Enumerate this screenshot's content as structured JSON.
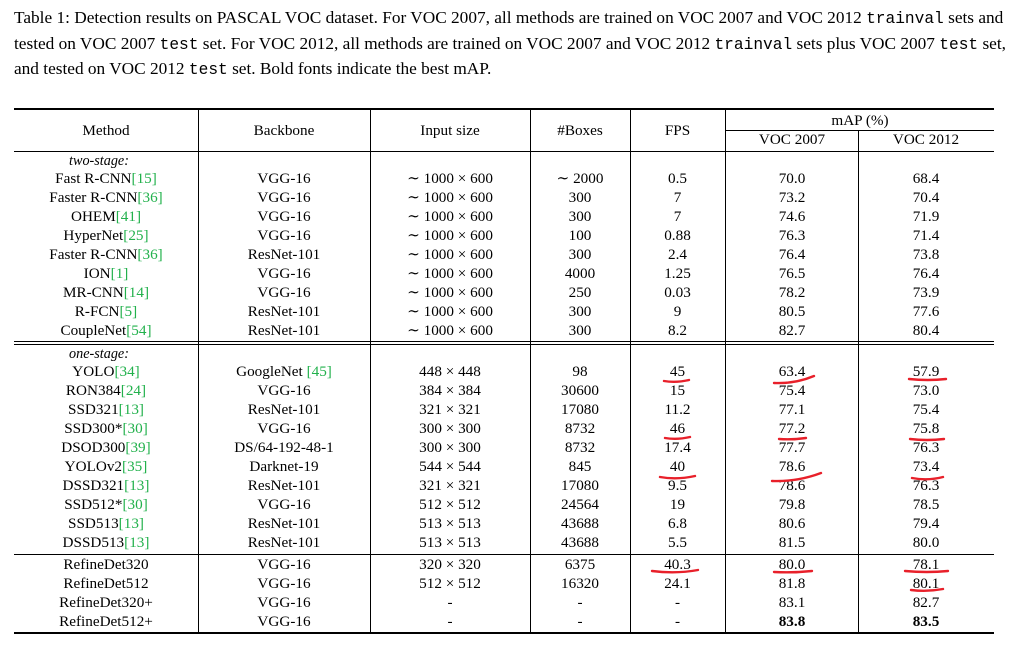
{
  "caption": {
    "parts": [
      {
        "text": "Table 1: Detection results on PASCAL VOC dataset. For VOC 2007, all methods are trained on VOC 2007 and VOC 2012 ",
        "mono": false
      },
      {
        "text": "trainval",
        "mono": true
      },
      {
        "text": " sets and tested on VOC 2007 ",
        "mono": false
      },
      {
        "text": "test",
        "mono": true
      },
      {
        "text": " set. For VOC 2012, all methods are trained on VOC 2007 and VOC 2012 ",
        "mono": false
      },
      {
        "text": "trainval",
        "mono": true
      },
      {
        "text": " sets plus VOC 2007 ",
        "mono": false
      },
      {
        "text": "test",
        "mono": true
      },
      {
        "text": " set, and tested on VOC 2012 ",
        "mono": false
      },
      {
        "text": "test",
        "mono": true
      },
      {
        "text": " set. Bold fonts indicate the best mAP.",
        "mono": false
      }
    ]
  },
  "header": {
    "method": "Method",
    "backbone": "Backbone",
    "input_size": "Input size",
    "boxes": "#Boxes",
    "fps": "FPS",
    "map": "mAP (%)",
    "voc2007": "VOC 2007",
    "voc2012": "VOC 2012"
  },
  "groups": [
    {
      "label": "two-stage:",
      "rows": [
        {
          "method": "Fast R-CNN",
          "ref": "[15]",
          "backbone": "VGG-16",
          "input": "∼ 1000 × 600",
          "boxes": "∼ 2000",
          "fps": "0.5",
          "voc2007": "70.0",
          "voc2012": "68.4"
        },
        {
          "method": "Faster R-CNN",
          "ref": "[36]",
          "backbone": "VGG-16",
          "input": "∼ 1000 × 600",
          "boxes": "300",
          "fps": "7",
          "voc2007": "73.2",
          "voc2012": "70.4"
        },
        {
          "method": "OHEM",
          "ref": "[41]",
          "backbone": "VGG-16",
          "input": "∼ 1000 × 600",
          "boxes": "300",
          "fps": "7",
          "voc2007": "74.6",
          "voc2012": "71.9"
        },
        {
          "method": "HyperNet",
          "ref": "[25]",
          "backbone": "VGG-16",
          "input": "∼ 1000 × 600",
          "boxes": "100",
          "fps": "0.88",
          "voc2007": "76.3",
          "voc2012": "71.4"
        },
        {
          "method": "Faster R-CNN",
          "ref": "[36]",
          "backbone": "ResNet-101",
          "input": "∼ 1000 × 600",
          "boxes": "300",
          "fps": "2.4",
          "voc2007": "76.4",
          "voc2012": "73.8"
        },
        {
          "method": "ION",
          "ref": "[1]",
          "backbone": "VGG-16",
          "input": "∼ 1000 × 600",
          "boxes": "4000",
          "fps": "1.25",
          "voc2007": "76.5",
          "voc2012": "76.4"
        },
        {
          "method": "MR-CNN",
          "ref": "[14]",
          "backbone": "VGG-16",
          "input": "∼ 1000 × 600",
          "boxes": "250",
          "fps": "0.03",
          "voc2007": "78.2",
          "voc2012": "73.9"
        },
        {
          "method": "R-FCN",
          "ref": "[5]",
          "backbone": "ResNet-101",
          "input": "∼ 1000 × 600",
          "boxes": "300",
          "fps": "9",
          "voc2007": "80.5",
          "voc2012": "77.6"
        },
        {
          "method": "CoupleNet",
          "ref": "[54]",
          "backbone": "ResNet-101",
          "input": "∼ 1000 × 600",
          "boxes": "300",
          "fps": "8.2",
          "voc2007": "82.7",
          "voc2012": "80.4"
        }
      ]
    },
    {
      "label": "one-stage:",
      "rows": [
        {
          "method": "YOLO",
          "ref": "[34]",
          "backbone": "GoogleNet [45]",
          "input": "448 × 448",
          "boxes": "98",
          "fps": "45",
          "voc2007": "63.4",
          "voc2012": "57.9"
        },
        {
          "method": "RON384",
          "ref": "[24]",
          "backbone": "VGG-16",
          "input": "384 × 384",
          "boxes": "30600",
          "fps": "15",
          "voc2007": "75.4",
          "voc2012": "73.0"
        },
        {
          "method": "SSD321",
          "ref": "[13]",
          "backbone": "ResNet-101",
          "input": "321 × 321",
          "boxes": "17080",
          "fps": "11.2",
          "voc2007": "77.1",
          "voc2012": "75.4"
        },
        {
          "method": "SSD300*",
          "ref": "[30]",
          "backbone": "VGG-16",
          "input": "300 × 300",
          "boxes": "8732",
          "fps": "46",
          "voc2007": "77.2",
          "voc2012": "75.8"
        },
        {
          "method": "DSOD300",
          "ref": "[39]",
          "backbone": "DS/64-192-48-1",
          "input": "300 × 300",
          "boxes": "8732",
          "fps": "17.4",
          "voc2007": "77.7",
          "voc2012": "76.3"
        },
        {
          "method": "YOLOv2",
          "ref": "[35]",
          "backbone": "Darknet-19",
          "input": "544 × 544",
          "boxes": "845",
          "fps": "40",
          "voc2007": "78.6",
          "voc2012": "73.4"
        },
        {
          "method": "DSSD321",
          "ref": "[13]",
          "backbone": "ResNet-101",
          "input": "321 × 321",
          "boxes": "17080",
          "fps": "9.5",
          "voc2007": "78.6",
          "voc2012": "76.3"
        },
        {
          "method": "SSD512*",
          "ref": "[30]",
          "backbone": "VGG-16",
          "input": "512 × 512",
          "boxes": "24564",
          "fps": "19",
          "voc2007": "79.8",
          "voc2012": "78.5"
        },
        {
          "method": "SSD513",
          "ref": "[13]",
          "backbone": "ResNet-101",
          "input": "513 × 513",
          "boxes": "43688",
          "fps": "6.8",
          "voc2007": "80.6",
          "voc2012": "79.4"
        },
        {
          "method": "DSSD513",
          "ref": "[13]",
          "backbone": "ResNet-101",
          "input": "513 × 513",
          "boxes": "43688",
          "fps": "5.5",
          "voc2007": "81.5",
          "voc2012": "80.0"
        }
      ]
    },
    {
      "label": "",
      "rows": [
        {
          "method": "RefineDet320",
          "ref": "",
          "backbone": "VGG-16",
          "input": "320 × 320",
          "boxes": "6375",
          "fps": "40.3",
          "voc2007": "80.0",
          "voc2012": "78.1"
        },
        {
          "method": "RefineDet512",
          "ref": "",
          "backbone": "VGG-16",
          "input": "512 × 512",
          "boxes": "16320",
          "fps": "24.1",
          "voc2007": "81.8",
          "voc2012": "80.1"
        },
        {
          "method": "RefineDet320+",
          "ref": "",
          "backbone": "VGG-16",
          "input": "-",
          "boxes": "-",
          "fps": "-",
          "voc2007": "83.1",
          "voc2012": "82.7"
        },
        {
          "method": "RefineDet512+",
          "ref": "",
          "backbone": "VGG-16",
          "input": "-",
          "boxes": "-",
          "fps": "-",
          "voc2007": "83.8",
          "voc2012": "83.5",
          "bold_map": true
        }
      ]
    }
  ],
  "colors": {
    "reference": "#22b14c",
    "annotation_ink": "#e8202a"
  }
}
